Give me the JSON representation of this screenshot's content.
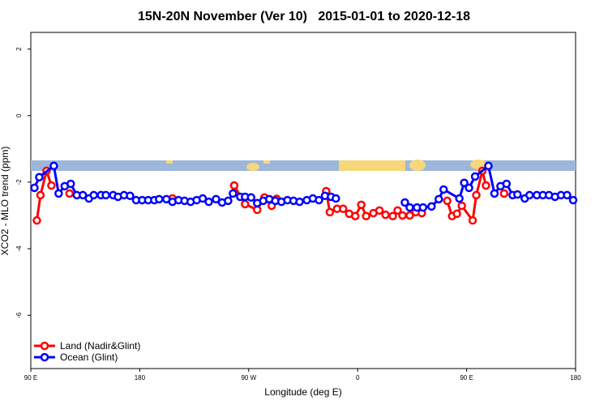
{
  "chart_data": {
    "type": "line",
    "title": "15N-20N November (Ver 10)   2015-01-01 to 2020-12-18",
    "x_label": "Longitude (deg E)",
    "y_label": "XCO2 - MLO trend (ppm)",
    "xlim": [
      90,
      540
    ],
    "ylim": [
      -7.6,
      2.5
    ],
    "xticks": [
      {
        "value": 90,
        "label": "90 E"
      },
      180,
      {
        "value": 270,
        "label": "90 W"
      },
      {
        "value": 360,
        "label": "0"
      },
      {
        "value": 450,
        "label": "90 E"
      },
      {
        "value": 540,
        "label": "180"
      }
    ],
    "yticks": [
      -6,
      -4,
      -2,
      0,
      2
    ],
    "legend": "bottom-left",
    "series": [
      {
        "name": "Land (Nadir&Glint)",
        "color": "#ff0000",
        "x": [
          95,
          98,
          103,
          107,
          null,
          122,
          null,
          207,
          null,
          258,
          267,
          277,
          283,
          289,
          293,
          null,
          334,
          337,
          343,
          348,
          353,
          358,
          363,
          367,
          373,
          378,
          383,
          389,
          393,
          397,
          403,
          408,
          413,
          null,
          434,
          438,
          442,
          446,
          455,
          458,
          463,
          466,
          null,
          481
        ],
        "values": [
          -3.15,
          -2.39,
          -1.66,
          -2.1,
          null,
          -2.34,
          null,
          -2.49,
          null,
          -2.1,
          -2.66,
          -2.83,
          -2.46,
          -2.71,
          -2.5,
          null,
          -2.27,
          -2.9,
          -2.8,
          -2.8,
          -2.95,
          -3.02,
          -2.68,
          -3.02,
          -2.93,
          -2.85,
          -2.98,
          -3.02,
          -2.85,
          -3.0,
          -3.0,
          -2.9,
          -2.93,
          null,
          -2.56,
          -3.02,
          -2.95,
          -2.71,
          -3.15,
          -2.39,
          -1.66,
          -2.1,
          null,
          -2.34
        ]
      },
      {
        "name": "Ocean (Glint)",
        "color": "#0000ff",
        "x": [
          93,
          97,
          109,
          113,
          118,
          123,
          128,
          133,
          138,
          142,
          148,
          152,
          158,
          162,
          167,
          172,
          177,
          182,
          187,
          192,
          196,
          202,
          207,
          212,
          217,
          222,
          227,
          232,
          237,
          243,
          248,
          253,
          257,
          263,
          267,
          272,
          277,
          282,
          287,
          292,
          297,
          302,
          307,
          312,
          318,
          323,
          328,
          333,
          338,
          342,
          null,
          399,
          403,
          409,
          414,
          421,
          427,
          431,
          444,
          448,
          452,
          457,
          468,
          473,
          478,
          483,
          488,
          492,
          498,
          502,
          508,
          513,
          518,
          523,
          528,
          533,
          538
        ],
        "values": [
          -2.17,
          -1.85,
          -1.51,
          -2.34,
          -2.12,
          -2.05,
          -2.39,
          -2.39,
          -2.49,
          -2.39,
          -2.39,
          -2.39,
          -2.39,
          -2.44,
          -2.39,
          -2.41,
          -2.54,
          -2.54,
          -2.54,
          -2.54,
          -2.51,
          -2.51,
          -2.59,
          -2.54,
          -2.56,
          -2.59,
          -2.54,
          -2.49,
          -2.59,
          -2.51,
          -2.61,
          -2.56,
          -2.34,
          -2.44,
          -2.44,
          -2.46,
          -2.63,
          -2.56,
          -2.51,
          -2.56,
          -2.59,
          -2.54,
          -2.56,
          -2.59,
          -2.54,
          -2.49,
          -2.54,
          -2.41,
          -2.44,
          -2.49,
          null,
          -2.61,
          -2.76,
          -2.76,
          -2.76,
          -2.73,
          -2.51,
          -2.22,
          -2.49,
          -2.02,
          -2.17,
          -1.83,
          -1.51,
          -2.34,
          -2.12,
          -2.05,
          -2.39,
          -2.37,
          -2.49,
          -2.39,
          -2.39,
          -2.39,
          -2.39,
          -2.44,
          -2.39,
          -2.39,
          -2.54
        ]
      }
    ]
  }
}
